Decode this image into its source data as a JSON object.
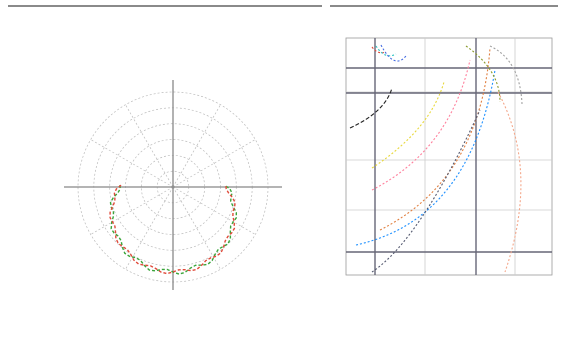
{
  "left_panel": {
    "title": "",
    "caption": "",
    "angle_labels": [
      "",
      "",
      "",
      "",
      "",
      "",
      "",
      "",
      "",
      "",
      "",
      ""
    ],
    "legend": [
      "",
      "",
      ""
    ]
  },
  "right_panel": {
    "title": "",
    "y_unit_label": "",
    "x_unit_label": "",
    "y_tick_labels": [
      "",
      "",
      "",
      "",
      "",
      "",
      "",
      "",
      "",
      ""
    ],
    "x_tick_labels": [
      "",
      "",
      ""
    ],
    "legend": [
      "",
      "",
      "",
      "",
      "",
      "",
      "",
      "",
      "",
      "",
      "",
      ""
    ]
  },
  "colors": {
    "rule": "#8a8a8a",
    "polar_grid": "#bbbbbb",
    "axes": "#888888",
    "green_series": "#3aa53a",
    "red_series": "#e04a3a",
    "reference_line": "#444444"
  },
  "chart_data": [
    {
      "type": "polar",
      "series": [
        {
          "color": "#3aa53a",
          "dash": "3,2",
          "shape": "lower-lobe"
        },
        {
          "color": "#e04a3a",
          "dash": "3,2",
          "shape": "lower-lobe"
        }
      ]
    },
    {
      "type": "line",
      "gridlines": true,
      "series": [
        {
          "color": "#e04a3a"
        },
        {
          "color": "#2ec4c4"
        },
        {
          "color": "#4169e1"
        },
        {
          "color": "#222222"
        },
        {
          "color": "#e8d83a"
        },
        {
          "color": "#ff7f9c"
        },
        {
          "color": "#e07f40"
        },
        {
          "color": "#1e90ff"
        },
        {
          "color": "#8a9a2a"
        },
        {
          "color": "#a0a0a0"
        },
        {
          "color": "#555a70"
        },
        {
          "color": "#f4a78a"
        }
      ]
    }
  ]
}
